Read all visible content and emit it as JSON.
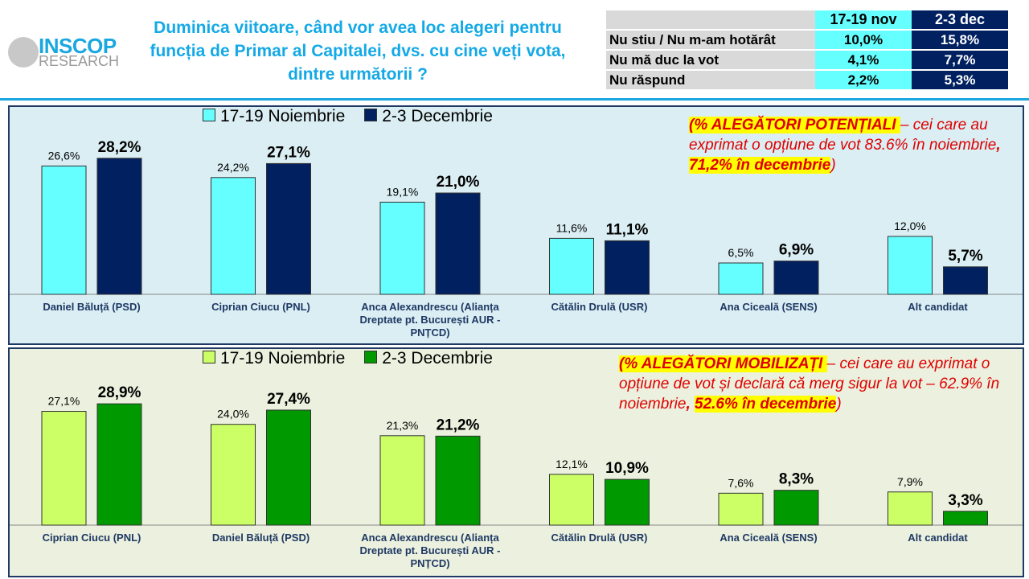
{
  "header": {
    "logo_top": "INSCOP",
    "logo_bottom": "RESEARCH",
    "title": "Duminica viitoare, când vor avea loc alegeri pentru funcția de Primar al Capitalei, dvs. cu cine veți vota, dintre următorii ?"
  },
  "summary_table": {
    "columns": [
      "17-19 nov",
      "2-3 dec"
    ],
    "rows": [
      {
        "label": "Nu stiu / Nu m-am hotărât",
        "nov": "10,0%",
        "dec": "15,8%"
      },
      {
        "label": "Nu mă duc la vot",
        "nov": "4,1%",
        "dec": "7,7%"
      },
      {
        "label": "Nu răspund",
        "nov": "2,2%",
        "dec": "5,3%"
      }
    ]
  },
  "colors": {
    "nov1": "#66ffff",
    "dec1": "#002060",
    "nov2": "#ccff66",
    "dec2": "#009900",
    "note": "#e00000"
  },
  "notes": [
    {
      "hl1": "(% ALEGĂTORI POTENȚIALI ",
      "t1": "– cei care au exprimat o opțiune de vot 83.6% în noiembrie",
      "t2": ", ",
      "hl2": "71,2% în decembrie",
      "t3": ")"
    },
    {
      "hl1": "(% ALEGĂTORI MOBILIZAȚI ",
      "t1": "– cei care au exprimat o opțiune de vot și declară că merg sigur la vot – 62.9% în noiembrie",
      "t2": ", ",
      "hl2": "52.6% în decembrie",
      "t3": ")"
    }
  ],
  "chart_data": [
    {
      "type": "bar",
      "legend": [
        "17-19 Noiembrie",
        "2-3 Decembrie"
      ],
      "categories": [
        "Daniel Băluță (PSD)",
        "Ciprian Ciucu (PNL)",
        "Anca Alexandrescu (Alianța Dreptate pt. București AUR - PNȚCD)",
        "Cătălin Drulă (USR)",
        "Ana Ciceală (SENS)",
        "Alt candidat"
      ],
      "series": [
        {
          "name": "17-19 Noiembrie",
          "values": [
            26.6,
            24.2,
            19.1,
            11.6,
            6.5,
            12.0
          ],
          "labels": [
            "26,6%",
            "24,2%",
            "19,1%",
            "11,6%",
            "6,5%",
            "12,0%"
          ]
        },
        {
          "name": "2-3 Decembrie",
          "values": [
            28.2,
            27.1,
            21.0,
            11.1,
            6.9,
            5.7
          ],
          "labels": [
            "28,2%",
            "27,1%",
            "21,0%",
            "11,1%",
            "6,9%",
            "5,7%"
          ]
        }
      ]
    },
    {
      "type": "bar",
      "legend": [
        "17-19 Noiembrie",
        "2-3 Decembrie"
      ],
      "categories": [
        "Ciprian Ciucu (PNL)",
        "Daniel Băluță (PSD)",
        "Anca Alexandrescu (Alianța Dreptate pt. București AUR - PNȚCD)",
        "Cătălin Drulă (USR)",
        "Ana Ciceală (SENS)",
        "Alt candidat"
      ],
      "series": [
        {
          "name": "17-19 Noiembrie",
          "values": [
            27.1,
            24.0,
            21.3,
            12.1,
            7.6,
            7.9
          ],
          "labels": [
            "27,1%",
            "24,0%",
            "21,3%",
            "12,1%",
            "7,6%",
            "7,9%"
          ]
        },
        {
          "name": "2-3 Decembrie",
          "values": [
            28.9,
            27.4,
            21.2,
            10.9,
            8.3,
            3.3
          ],
          "labels": [
            "28,9%",
            "27,4%",
            "21,2%",
            "10,9%",
            "8,3%",
            "3,3%"
          ]
        }
      ]
    }
  ]
}
